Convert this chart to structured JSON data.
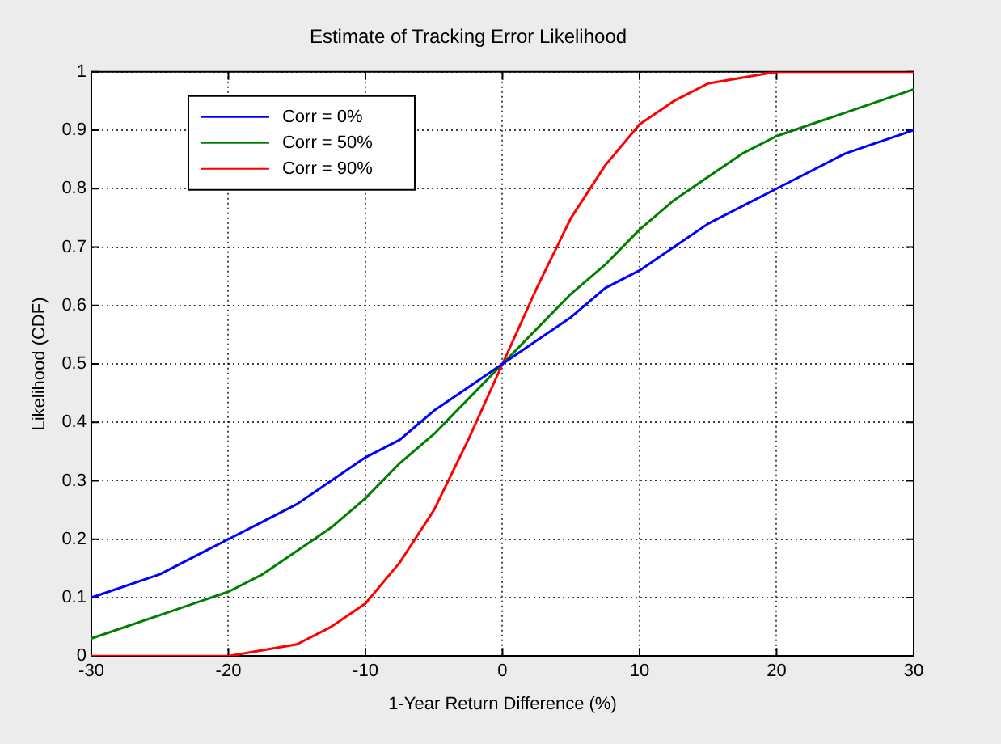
{
  "chart_data": {
    "type": "line",
    "title": "Estimate of Tracking Error Likelihood",
    "xlabel": "1-Year Return Difference (%)",
    "ylabel": "Likelihood (CDF)",
    "x": [
      -30,
      -25,
      -20,
      -17.5,
      -15,
      -12.5,
      -10,
      -7.5,
      -5,
      -2.5,
      0,
      2.5,
      5,
      7.5,
      10,
      12.5,
      15,
      17.5,
      20,
      25,
      30
    ],
    "series": [
      {
        "name": "Corr = 0%",
        "color": "#0000ff",
        "values": [
          0.1,
          0.14,
          0.2,
          0.23,
          0.26,
          0.3,
          0.34,
          0.37,
          0.42,
          0.46,
          0.5,
          0.54,
          0.58,
          0.63,
          0.66,
          0.7,
          0.74,
          0.77,
          0.8,
          0.86,
          0.9
        ]
      },
      {
        "name": "Corr = 50%",
        "color": "#008000",
        "values": [
          0.03,
          0.07,
          0.11,
          0.14,
          0.18,
          0.22,
          0.27,
          0.33,
          0.38,
          0.44,
          0.5,
          0.56,
          0.62,
          0.67,
          0.73,
          0.78,
          0.82,
          0.86,
          0.89,
          0.93,
          0.97
        ]
      },
      {
        "name": "Corr = 90%",
        "color": "#ff0000",
        "values": [
          0,
          0,
          0,
          0.01,
          0.02,
          0.05,
          0.09,
          0.16,
          0.25,
          0.37,
          0.5,
          0.63,
          0.75,
          0.84,
          0.91,
          0.95,
          0.98,
          0.99,
          1,
          1,
          1
        ]
      }
    ],
    "xlim": [
      -30,
      30
    ],
    "xticks": [
      -30,
      -20,
      -10,
      0,
      10,
      20,
      30
    ],
    "ylim": [
      0,
      1
    ],
    "yticks": [
      0,
      0.1,
      0.2,
      0.3,
      0.4,
      0.5,
      0.6,
      0.7,
      0.8,
      0.9,
      1
    ],
    "grid": true,
    "legend": "top left",
    "marker": "none",
    "line_style": "solid"
  }
}
